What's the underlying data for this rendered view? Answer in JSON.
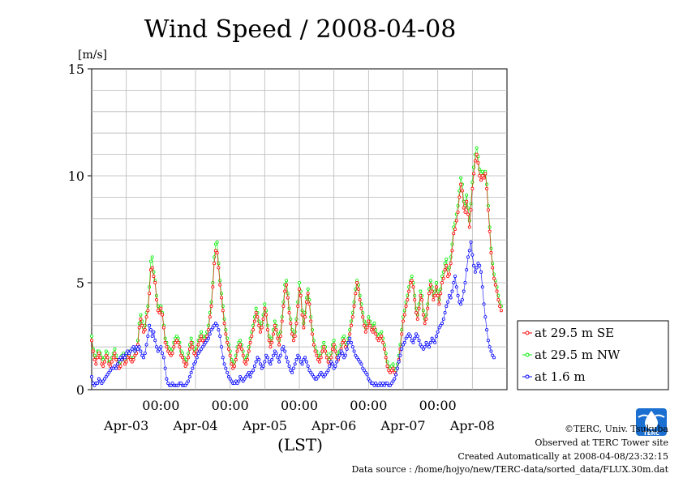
{
  "chart_data": {
    "type": "line",
    "title": "Wind Speed / 2008-04-08",
    "ylabel": "[m/s]",
    "xlabel": "(LST)",
    "ylim": [
      0,
      15
    ],
    "yticks": [
      0,
      5,
      10,
      15
    ],
    "x_time_ticks": [
      "00:00",
      "00:00",
      "00:00",
      "00:00",
      "00:00"
    ],
    "x_day_labels": [
      "Apr-03",
      "Apr-04",
      "Apr-05",
      "Apr-06",
      "Apr-07",
      "Apr-08"
    ],
    "xlim_hours": [
      0,
      144
    ],
    "x_unit": "hours from Apr-03 00:00 (LST)",
    "x_step_hours": 0.5,
    "grid": true,
    "legend_position": "right",
    "series": [
      {
        "name": "at 29.5 m SE",
        "color": "#ff0000",
        "values": [
          2.3,
          1.8,
          1.4,
          1.2,
          1.5,
          1.7,
          1.5,
          1.2,
          1.1,
          1.3,
          1.6,
          1.5,
          1.2,
          1.1,
          1.3,
          1.5,
          1.7,
          1.4,
          1.2,
          1.0,
          1.1,
          1.4,
          1.5,
          1.2,
          1.3,
          1.5,
          1.6,
          1.4,
          1.3,
          1.4,
          1.6,
          1.7,
          2.1,
          2.9,
          3.3,
          3.0,
          2.7,
          2.8,
          3.4,
          3.7,
          4.5,
          5.6,
          5.7,
          5.3,
          5.0,
          4.2,
          3.7,
          3.6,
          3.8,
          3.5,
          2.9,
          2.2,
          2.0,
          1.8,
          1.7,
          1.6,
          1.7,
          2.0,
          2.2,
          2.3,
          2.2,
          2.0,
          1.6,
          1.5,
          1.3,
          1.1,
          1.2,
          1.5,
          1.9,
          2.2,
          2.0,
          1.7,
          1.6,
          1.8,
          2.1,
          2.3,
          2.5,
          2.3,
          2.2,
          2.3,
          2.5,
          2.8,
          3.4,
          3.9,
          4.8,
          5.9,
          6.5,
          6.4,
          5.7,
          4.9,
          4.3,
          3.7,
          3.1,
          2.6,
          2.2,
          1.9,
          1.6,
          1.2,
          1.0,
          1.1,
          1.4,
          1.8,
          2.0,
          2.1,
          1.9,
          1.6,
          1.3,
          1.2,
          1.4,
          1.8,
          2.2,
          2.5,
          2.8,
          3.2,
          3.6,
          3.4,
          3.0,
          2.7,
          2.9,
          3.3,
          3.8,
          3.5,
          2.8,
          2.3,
          2.0,
          2.2,
          2.6,
          3.0,
          2.8,
          2.4,
          2.1,
          2.5,
          3.2,
          3.9,
          4.6,
          4.9,
          4.3,
          3.6,
          3.1,
          2.6,
          2.3,
          2.5,
          3.1,
          3.9,
          4.7,
          4.4,
          3.5,
          2.9,
          3.4,
          4.1,
          4.5,
          4.0,
          3.2,
          2.6,
          2.1,
          1.8,
          1.6,
          1.4,
          1.3,
          1.5,
          1.8,
          2.0,
          1.8,
          1.5,
          1.3,
          1.2,
          1.5,
          1.9,
          2.1,
          1.8,
          1.5,
          1.4,
          1.6,
          1.9,
          2.2,
          2.3,
          2.0,
          1.9,
          2.2,
          2.6,
          3.0,
          3.4,
          3.9,
          4.5,
          5.0,
          4.7,
          4.2,
          3.8,
          3.4,
          3.0,
          2.7,
          2.9,
          3.2,
          3.0,
          2.8,
          2.7,
          2.9,
          2.6,
          2.4,
          2.3,
          2.4,
          2.5,
          2.2,
          1.9,
          1.5,
          1.1,
          0.9,
          0.8,
          0.9,
          1.0,
          0.8,
          0.7,
          1.0,
          1.4,
          1.9,
          2.6,
          3.2,
          3.5,
          3.9,
          4.2,
          4.6,
          5.0,
          5.1,
          4.8,
          4.2,
          3.6,
          3.3,
          3.8,
          4.4,
          4.2,
          3.5,
          3.1,
          3.3,
          3.8,
          4.5,
          4.9,
          4.6,
          4.2,
          4.4,
          4.8,
          4.4,
          4.0,
          4.5,
          5.0,
          5.2,
          5.6,
          5.8,
          5.3,
          5.4,
          5.9,
          6.5,
          7.3,
          7.5,
          7.9,
          8.3,
          9.0,
          9.6,
          9.3,
          8.5,
          8.3,
          8.8,
          8.2,
          7.6,
          8.4,
          9.4,
          10.1,
          10.7,
          11.0,
          10.6,
          10.0,
          9.8,
          10.0,
          9.9,
          10.1,
          9.4,
          8.4,
          7.4,
          6.4,
          5.7,
          5.2,
          4.9,
          4.6,
          4.2,
          3.9,
          3.7
        ]
      },
      {
        "name": "at 29.5 m NW",
        "color": "#00ee00",
        "values": [
          2.5,
          1.9,
          1.6,
          1.5,
          1.8,
          1.8,
          1.7,
          1.5,
          1.4,
          1.5,
          1.8,
          1.7,
          1.3,
          1.3,
          1.5,
          1.7,
          1.9,
          1.6,
          1.4,
          1.2,
          1.3,
          1.6,
          1.7,
          1.4,
          1.5,
          1.7,
          1.8,
          1.5,
          1.4,
          1.5,
          1.8,
          1.9,
          2.3,
          3.1,
          3.5,
          3.2,
          2.9,
          3.0,
          3.6,
          3.9,
          4.8,
          6.0,
          6.2,
          5.5,
          5.1,
          4.4,
          3.9,
          3.7,
          3.9,
          3.6,
          3.0,
          2.4,
          2.2,
          2.0,
          1.9,
          1.8,
          1.9,
          2.2,
          2.4,
          2.5,
          2.4,
          2.2,
          1.8,
          1.7,
          1.5,
          1.3,
          1.4,
          1.7,
          2.1,
          2.4,
          2.2,
          1.9,
          1.8,
          2.0,
          2.3,
          2.5,
          2.7,
          2.5,
          2.4,
          2.5,
          2.7,
          3.0,
          3.6,
          4.1,
          5.0,
          6.2,
          6.8,
          6.9,
          5.9,
          5.1,
          4.5,
          3.9,
          3.3,
          2.8,
          2.4,
          2.1,
          1.8,
          1.4,
          1.2,
          1.3,
          1.6,
          2.0,
          2.2,
          2.3,
          2.1,
          1.8,
          1.5,
          1.4,
          1.6,
          2.0,
          2.4,
          2.7,
          3.0,
          3.4,
          3.8,
          3.6,
          3.2,
          2.9,
          3.1,
          3.5,
          4.0,
          3.7,
          3.0,
          2.5,
          2.2,
          2.4,
          2.8,
          3.2,
          3.0,
          2.6,
          2.3,
          2.7,
          3.4,
          4.1,
          4.9,
          5.1,
          4.5,
          3.8,
          3.3,
          2.8,
          2.5,
          2.7,
          3.3,
          4.1,
          5.0,
          4.6,
          3.7,
          3.1,
          3.6,
          4.3,
          4.7,
          4.2,
          3.4,
          2.8,
          2.3,
          2.0,
          1.8,
          1.6,
          1.5,
          1.7,
          2.0,
          2.2,
          2.0,
          1.7,
          1.5,
          1.4,
          1.7,
          2.1,
          2.3,
          2.0,
          1.7,
          1.6,
          1.8,
          2.1,
          2.4,
          2.5,
          2.2,
          2.1,
          2.4,
          2.8,
          3.2,
          3.6,
          4.1,
          4.7,
          5.1,
          4.9,
          4.4,
          4.0,
          3.6,
          3.2,
          2.9,
          3.1,
          3.4,
          3.2,
          3.0,
          2.9,
          3.1,
          2.8,
          2.6,
          2.5,
          2.6,
          2.7,
          2.4,
          2.1,
          1.7,
          1.3,
          1.1,
          1.0,
          1.1,
          1.2,
          1.0,
          0.9,
          1.2,
          1.6,
          2.1,
          2.8,
          3.4,
          3.7,
          4.1,
          4.4,
          4.8,
          5.1,
          5.3,
          5.0,
          4.4,
          3.8,
          3.5,
          4.0,
          4.6,
          4.4,
          3.7,
          3.3,
          3.5,
          4.0,
          4.7,
          5.1,
          4.8,
          4.4,
          4.6,
          5.0,
          4.6,
          4.2,
          4.7,
          5.3,
          5.5,
          5.9,
          6.1,
          5.6,
          5.7,
          6.2,
          6.8,
          7.6,
          7.8,
          8.2,
          8.6,
          9.3,
          9.9,
          9.6,
          8.8,
          8.6,
          9.1,
          8.5,
          7.9,
          8.7,
          9.7,
          10.4,
          11.0,
          11.3,
          10.9,
          10.3,
          10.1,
          10.2,
          10.0,
          10.2,
          9.6,
          8.6,
          7.6,
          6.6,
          5.9,
          5.4,
          5.1,
          4.8,
          4.4,
          4.1,
          3.9
        ]
      },
      {
        "name": "at 1.6 m",
        "color": "#0000ff",
        "values": [
          0.6,
          0.3,
          0.2,
          0.3,
          0.3,
          0.5,
          0.4,
          0.3,
          0.4,
          0.5,
          0.6,
          0.7,
          0.8,
          0.9,
          1.0,
          1.0,
          1.1,
          1.0,
          1.2,
          1.4,
          1.5,
          1.4,
          1.6,
          1.5,
          1.7,
          1.8,
          1.7,
          1.8,
          1.9,
          2.0,
          1.8,
          2.0,
          1.9,
          2.0,
          1.8,
          1.6,
          1.5,
          1.7,
          2.1,
          2.5,
          3.0,
          2.8,
          2.5,
          2.7,
          2.3,
          2.0,
          1.8,
          1.9,
          2.0,
          1.7,
          1.5,
          1.0,
          0.5,
          0.3,
          0.2,
          0.2,
          0.3,
          0.2,
          0.2,
          0.2,
          0.2,
          0.3,
          0.3,
          0.2,
          0.2,
          0.2,
          0.3,
          0.4,
          0.6,
          0.8,
          1.0,
          1.2,
          1.3,
          1.5,
          1.7,
          1.8,
          1.9,
          2.0,
          2.1,
          2.2,
          2.3,
          2.4,
          2.6,
          2.8,
          2.9,
          3.0,
          3.1,
          3.0,
          2.8,
          2.5,
          2.0,
          1.5,
          1.2,
          1.0,
          0.8,
          0.6,
          0.5,
          0.4,
          0.3,
          0.3,
          0.4,
          0.3,
          0.4,
          0.6,
          0.5,
          0.4,
          0.5,
          0.6,
          0.7,
          0.8,
          0.6,
          0.8,
          0.9,
          1.1,
          1.3,
          1.5,
          1.4,
          1.2,
          1.0,
          1.1,
          1.3,
          1.6,
          1.5,
          1.3,
          1.2,
          1.4,
          1.6,
          1.8,
          1.7,
          1.5,
          1.3,
          1.6,
          1.9,
          2.0,
          1.8,
          1.5,
          1.3,
          1.1,
          0.9,
          0.8,
          1.0,
          1.2,
          1.4,
          1.6,
          1.5,
          1.3,
          1.2,
          1.4,
          1.5,
          1.3,
          1.1,
          0.9,
          0.8,
          0.7,
          0.6,
          0.5,
          0.5,
          0.6,
          0.7,
          0.8,
          0.7,
          0.6,
          0.7,
          0.8,
          0.9,
          1.1,
          1.3,
          1.2,
          1.0,
          1.1,
          1.3,
          1.5,
          1.6,
          1.8,
          1.7,
          1.5,
          1.6,
          1.9,
          2.2,
          2.4,
          2.2,
          2.0,
          1.8,
          1.6,
          1.5,
          1.4,
          1.3,
          1.2,
          1.0,
          0.9,
          0.8,
          0.7,
          0.5,
          0.4,
          0.3,
          0.3,
          0.2,
          0.3,
          0.2,
          0.2,
          0.3,
          0.2,
          0.3,
          0.2,
          0.3,
          0.3,
          0.2,
          0.2,
          0.3,
          0.4,
          0.5,
          0.7,
          1.0,
          1.3,
          1.6,
          1.9,
          2.1,
          2.2,
          2.4,
          2.5,
          2.6,
          2.5,
          2.3,
          2.2,
          2.4,
          2.6,
          2.5,
          2.3,
          2.1,
          2.0,
          1.9,
          2.0,
          2.2,
          2.1,
          2.0,
          2.2,
          2.4,
          2.3,
          2.2,
          2.5,
          2.7,
          2.9,
          3.0,
          3.1,
          3.3,
          3.6,
          3.9,
          4.1,
          4.4,
          4.3,
          4.6,
          5.0,
          5.3,
          4.8,
          4.4,
          4.1,
          4.0,
          4.2,
          4.6,
          5.0,
          5.6,
          6.2,
          6.5,
          6.9,
          6.3,
          5.8,
          5.5,
          5.7,
          5.9,
          5.8,
          5.5,
          4.8,
          4.0,
          3.4,
          2.8,
          2.3,
          2.0,
          1.8,
          1.6,
          1.5
        ]
      }
    ]
  },
  "credits": {
    "copyright": "©TERC, Univ. Tsukuba",
    "observed": "Observed at TERC Tower site",
    "created": "Created Automatically at 2008-04-08/23:32:15",
    "source": "Data source : /home/hojyo/new/TERC-data/sorted_data/FLUX.30m.dat"
  },
  "logo": {
    "icon": "terc-logo-icon",
    "text": "TERC",
    "color": "#1a6fd0"
  }
}
